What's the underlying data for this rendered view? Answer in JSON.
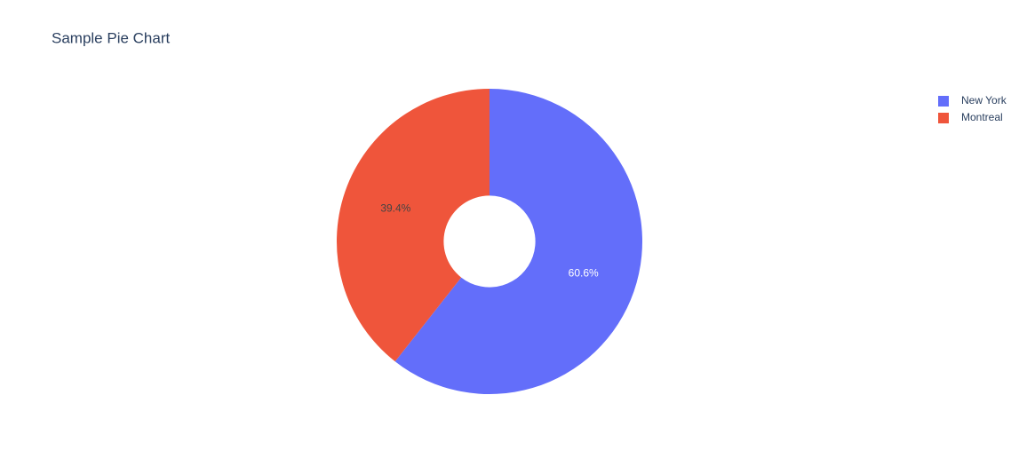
{
  "chart_data": {
    "type": "pie",
    "title": "Sample Pie Chart",
    "categories": [
      "New York",
      "Montreal"
    ],
    "values": [
      60.6,
      39.4
    ],
    "value_labels": [
      "60.6%",
      "39.4%"
    ],
    "colors": [
      "#636efa",
      "#EF553B"
    ],
    "label_colors": [
      "#ffffff",
      "#444444"
    ],
    "hole": 0.3,
    "legend": "top-right"
  }
}
